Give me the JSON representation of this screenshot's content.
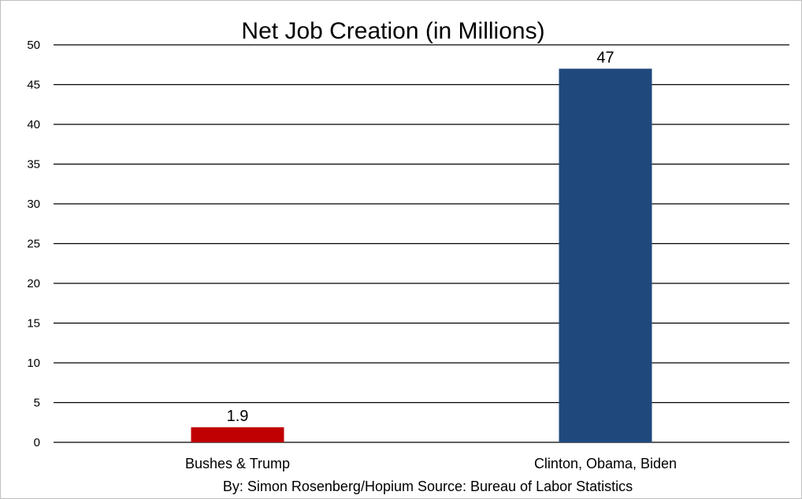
{
  "chart_data": {
    "type": "bar",
    "title": "Net Job Creation (in Millions)",
    "xlabel": "",
    "ylabel": "",
    "categories": [
      "Bushes & Trump",
      "Clinton, Obama, Biden"
    ],
    "values": [
      1.9,
      47
    ],
    "value_labels": [
      "1.9",
      "47"
    ],
    "colors": [
      "#c00000",
      "#1f497d"
    ],
    "ylim": [
      0,
      50
    ],
    "yticks": [
      0,
      5,
      10,
      15,
      20,
      25,
      30,
      35,
      40,
      45,
      50
    ],
    "grid": true,
    "legend": "none",
    "footer": "By: Simon Rosenberg/Hopium Source: Bureau of Labor Statistics"
  }
}
